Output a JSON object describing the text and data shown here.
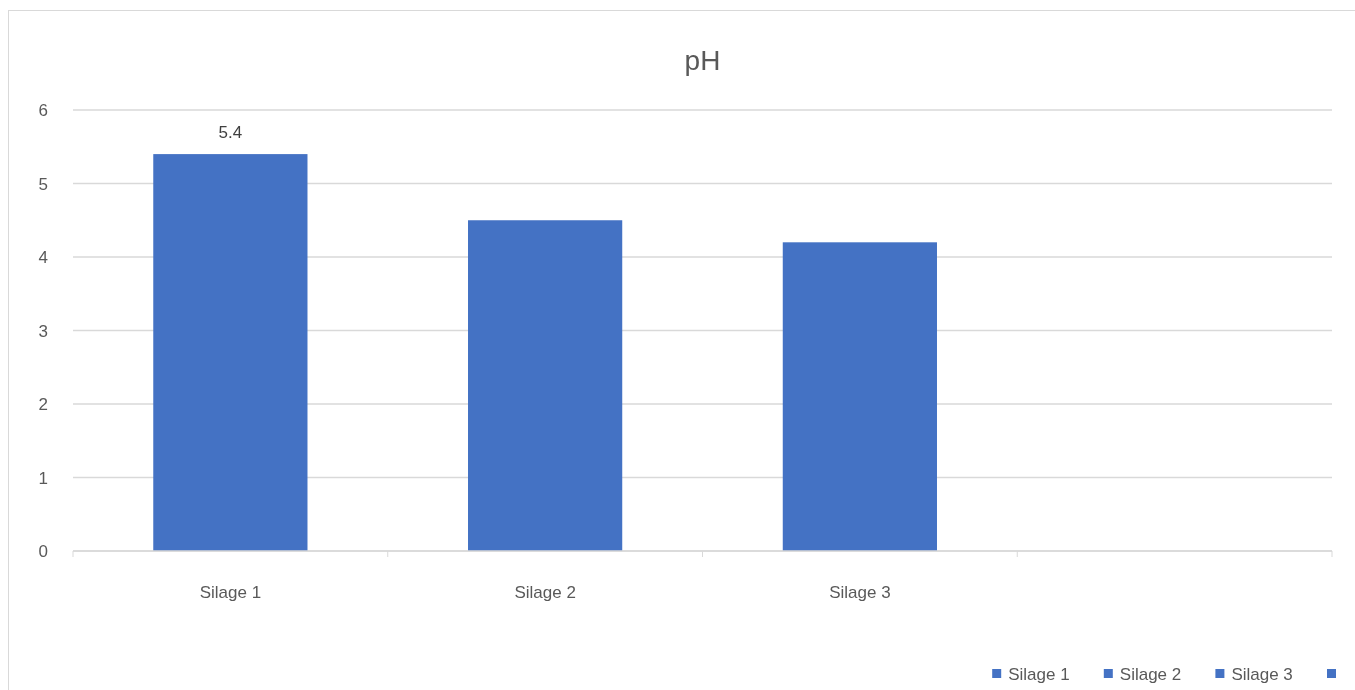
{
  "chart_data": {
    "type": "bar",
    "title": "pH",
    "categories": [
      "Silage 1",
      "Silage 2",
      "Silage 3",
      null
    ],
    "series": [
      {
        "name": "Silage 1",
        "color": "#4472c4",
        "values": [
          5.4,
          null,
          null,
          null
        ],
        "value_labels": [
          "5.4",
          null,
          null,
          null
        ]
      },
      {
        "name": "Silage 2",
        "color": "#4472c4",
        "values": [
          null,
          4.5,
          null,
          null
        ]
      },
      {
        "name": "Silage 3",
        "color": "#4472c4",
        "values": [
          null,
          null,
          4.2,
          null
        ]
      },
      {
        "color": "#4472c4",
        "values": [
          null,
          null,
          null,
          null
        ]
      }
    ],
    "ylim": [
      0,
      6
    ],
    "yticks": [
      0,
      1,
      2,
      3,
      4,
      5,
      6
    ],
    "grid": "y",
    "legend": "bottom right"
  }
}
